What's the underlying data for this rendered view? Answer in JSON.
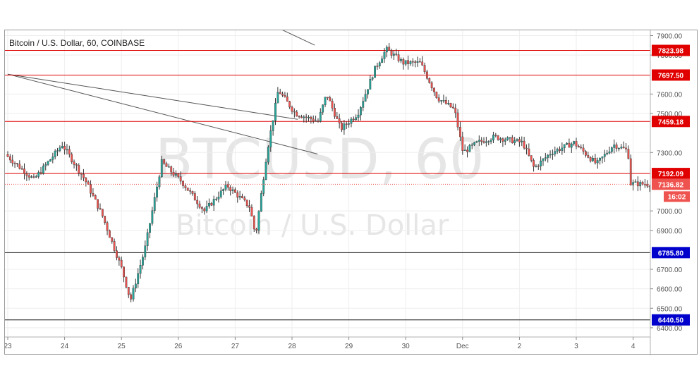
{
  "chart_data": {
    "type": "candlestick",
    "title": "Bitcoin / U.S. Dollar, 60, COINBASE",
    "watermark": {
      "symbol": "BTCUSD, 60",
      "name": "Bitcoin / U.S. Dollar"
    },
    "y_axis": {
      "range": [
        6400,
        7900
      ],
      "ticks": [
        {
          "value": 7900,
          "label": "7900.00"
        },
        {
          "value": 7800,
          "label": "7800.00"
        },
        {
          "value": 7600,
          "label": "7600.00"
        },
        {
          "value": 7500,
          "label": "7500.00"
        },
        {
          "value": 7300,
          "label": "7300.00"
        },
        {
          "value": 7000,
          "label": "7000.00"
        },
        {
          "value": 6900,
          "label": "6900.00"
        },
        {
          "value": 6700,
          "label": "6700.00"
        },
        {
          "value": 6600,
          "label": "6600.00"
        },
        {
          "value": 6500,
          "label": "6500.00"
        },
        {
          "value": 6400,
          "label": "6400.00"
        }
      ]
    },
    "x_axis": {
      "labels": [
        {
          "day": 0,
          "label": "23"
        },
        {
          "day": 1,
          "label": "24"
        },
        {
          "day": 2,
          "label": "25"
        },
        {
          "day": 3,
          "label": "26"
        },
        {
          "day": 4,
          "label": "27"
        },
        {
          "day": 5,
          "label": "28"
        },
        {
          "day": 6,
          "label": "29"
        },
        {
          "day": 7,
          "label": "30"
        },
        {
          "day": 8,
          "label": "Dec"
        },
        {
          "day": 9,
          "label": "2"
        },
        {
          "day": 10,
          "label": "3"
        },
        {
          "day": 11,
          "label": "4"
        }
      ]
    },
    "horizontal_levels": [
      {
        "value": 7823.98,
        "label": "7823.98",
        "color": "#e00000"
      },
      {
        "value": 7697.5,
        "label": "7697.50",
        "color": "#e00000"
      },
      {
        "value": 7459.18,
        "label": "7459.18",
        "color": "#e00000"
      },
      {
        "value": 7192.09,
        "label": "7192.09",
        "color": "#e00000"
      },
      {
        "value": 6785.8,
        "label": "6785.80",
        "color": "#0000cc",
        "line_color": "#111111"
      },
      {
        "value": 6440.5,
        "label": "6440.50",
        "color": "#0000cc",
        "line_color": "#111111"
      }
    ],
    "last_price": {
      "value": 7136.82,
      "label": "7136.82",
      "countdown": "16:02",
      "color": "#ef5350"
    },
    "trend_lines": [
      {
        "from": {
          "day": 4.4,
          "value": 7988
        },
        "to": {
          "day": 5.4,
          "value": 7851
        }
      },
      {
        "from": {
          "day": 0.0,
          "value": 7702
        },
        "to": {
          "day": 5.1,
          "value": 7470
        }
      },
      {
        "from": {
          "day": 0.0,
          "value": 7702
        },
        "to": {
          "day": 5.45,
          "value": 7292
        }
      }
    ],
    "colors": {
      "up": "#26a69a",
      "down": "#ef5350",
      "wick": "#333333"
    },
    "key_prices": [
      {
        "day": 0.0,
        "value": 7290
      },
      {
        "day": 0.5,
        "value": 7160
      },
      {
        "day": 1.0,
        "value": 7340
      },
      {
        "day": 1.4,
        "value": 7160
      },
      {
        "day": 1.7,
        "value": 6980
      },
      {
        "day": 2.05,
        "value": 6700
      },
      {
        "day": 2.2,
        "value": 6540
      },
      {
        "day": 2.45,
        "value": 6800
      },
      {
        "day": 2.75,
        "value": 7250
      },
      {
        "day": 3.1,
        "value": 7150
      },
      {
        "day": 3.5,
        "value": 7000
      },
      {
        "day": 3.9,
        "value": 7130
      },
      {
        "day": 4.3,
        "value": 7020
      },
      {
        "day": 4.4,
        "value": 6870
      },
      {
        "day": 4.6,
        "value": 7300
      },
      {
        "day": 4.8,
        "value": 7620
      },
      {
        "day": 5.1,
        "value": 7500
      },
      {
        "day": 5.5,
        "value": 7460
      },
      {
        "day": 5.65,
        "value": 7600
      },
      {
        "day": 5.9,
        "value": 7420
      },
      {
        "day": 6.2,
        "value": 7500
      },
      {
        "day": 6.5,
        "value": 7730
      },
      {
        "day": 6.7,
        "value": 7830
      },
      {
        "day": 7.0,
        "value": 7760
      },
      {
        "day": 7.3,
        "value": 7760
      },
      {
        "day": 7.6,
        "value": 7580
      },
      {
        "day": 7.9,
        "value": 7520
      },
      {
        "day": 8.05,
        "value": 7300
      },
      {
        "day": 8.3,
        "value": 7350
      },
      {
        "day": 8.6,
        "value": 7380
      },
      {
        "day": 9.1,
        "value": 7350
      },
      {
        "day": 9.3,
        "value": 7220
      },
      {
        "day": 9.6,
        "value": 7300
      },
      {
        "day": 10.0,
        "value": 7350
      },
      {
        "day": 10.4,
        "value": 7240
      },
      {
        "day": 10.7,
        "value": 7340
      },
      {
        "day": 10.95,
        "value": 7310
      },
      {
        "day": 11.0,
        "value": 7140
      },
      {
        "day": 11.3,
        "value": 7137
      }
    ]
  }
}
